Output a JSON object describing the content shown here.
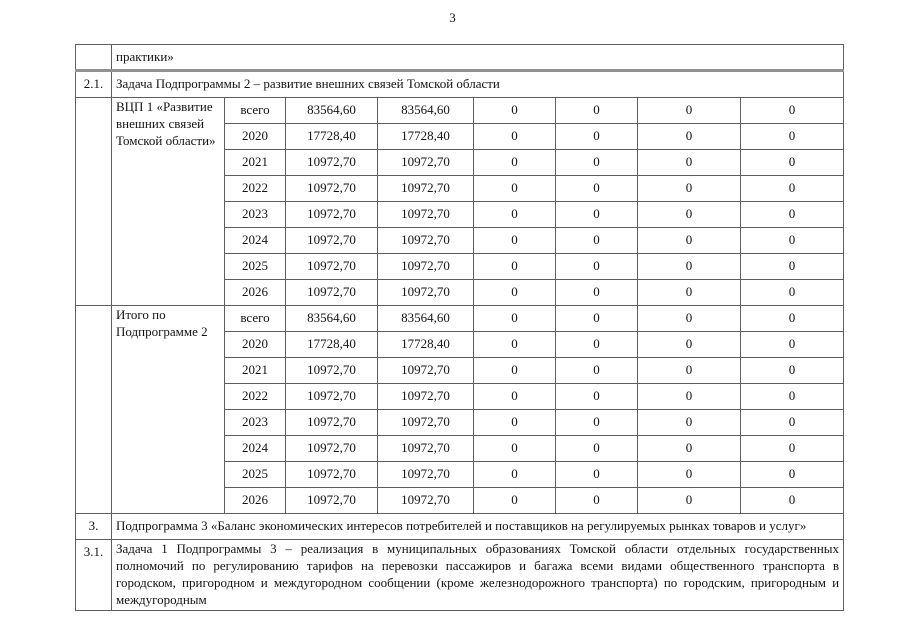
{
  "page": {
    "number": "3"
  },
  "table": {
    "continuation_text": "практики»",
    "task_2_1": {
      "num": "2.1.",
      "text": "Задача Подпрограммы 2 – развитие внешних связей Томской области"
    },
    "blocks": [
      {
        "label": "ВЦП 1 «Развитие внешних связей Томской области»",
        "rows": [
          {
            "period": "всего",
            "values": [
              "83564,60",
              "83564,60",
              "0",
              "0",
              "0",
              "0"
            ]
          },
          {
            "period": "2020",
            "values": [
              "17728,40",
              "17728,40",
              "0",
              "0",
              "0",
              "0"
            ]
          },
          {
            "period": "2021",
            "values": [
              "10972,70",
              "10972,70",
              "0",
              "0",
              "0",
              "0"
            ]
          },
          {
            "period": "2022",
            "values": [
              "10972,70",
              "10972,70",
              "0",
              "0",
              "0",
              "0"
            ]
          },
          {
            "period": "2023",
            "values": [
              "10972,70",
              "10972,70",
              "0",
              "0",
              "0",
              "0"
            ]
          },
          {
            "period": "2024",
            "values": [
              "10972,70",
              "10972,70",
              "0",
              "0",
              "0",
              "0"
            ]
          },
          {
            "period": "2025",
            "values": [
              "10972,70",
              "10972,70",
              "0",
              "0",
              "0",
              "0"
            ]
          },
          {
            "period": "2026",
            "values": [
              "10972,70",
              "10972,70",
              "0",
              "0",
              "0",
              "0"
            ]
          }
        ]
      },
      {
        "label": "Итого по Подпрограмме 2",
        "rows": [
          {
            "period": "всего",
            "values": [
              "83564,60",
              "83564,60",
              "0",
              "0",
              "0",
              "0"
            ]
          },
          {
            "period": "2020",
            "values": [
              "17728,40",
              "17728,40",
              "0",
              "0",
              "0",
              "0"
            ]
          },
          {
            "period": "2021",
            "values": [
              "10972,70",
              "10972,70",
              "0",
              "0",
              "0",
              "0"
            ]
          },
          {
            "period": "2022",
            "values": [
              "10972,70",
              "10972,70",
              "0",
              "0",
              "0",
              "0"
            ]
          },
          {
            "period": "2023",
            "values": [
              "10972,70",
              "10972,70",
              "0",
              "0",
              "0",
              "0"
            ]
          },
          {
            "period": "2024",
            "values": [
              "10972,70",
              "10972,70",
              "0",
              "0",
              "0",
              "0"
            ]
          },
          {
            "period": "2025",
            "values": [
              "10972,70",
              "10972,70",
              "0",
              "0",
              "0",
              "0"
            ]
          },
          {
            "period": "2026",
            "values": [
              "10972,70",
              "10972,70",
              "0",
              "0",
              "0",
              "0"
            ]
          }
        ]
      }
    ],
    "subprogram_3": {
      "num": "3.",
      "text": "Подпрограмма 3 «Баланс экономических интересов потребителей и поставщиков на регулируемых рынках товаров и услуг»"
    },
    "task_3_1": {
      "num": "3.1.",
      "text": "Задача 1 Подпрограммы 3 – реализация в муниципальных образованиях Томской области отдельных государственных полномочий по регулированию тарифов на перевозки пассажиров и багажа всеми видами общественного транспорта в городском, пригородном и междугородном сообщении (кроме железнодорожного транспорта) по городским, пригородным и междугородным"
    }
  }
}
